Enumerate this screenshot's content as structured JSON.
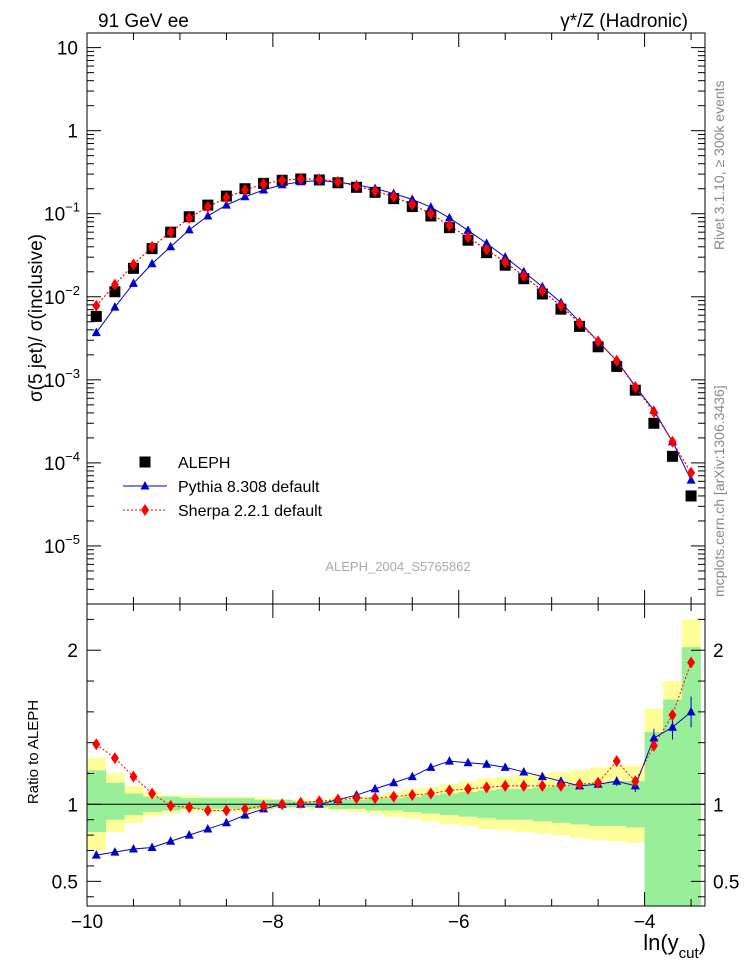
{
  "header": {
    "left_label": "91 GeV ee",
    "right_label": "γ*/Z (Hadronic)"
  },
  "side_labels": {
    "rivet": "Rivet 3.1.10, ≥ 300k events",
    "mcplots": "mcplots.cern.ch [arXiv:1306.3436]"
  },
  "watermark": "ALEPH_2004_S5765862",
  "colors": {
    "data": "#000000",
    "pythia": "#0000cc",
    "sherpa": "#ff0000",
    "band_inner": "#99ee99",
    "band_outer": "#ffff99"
  },
  "chart_data": [
    {
      "type": "scatter",
      "panel": "main",
      "ylabel": "σ(5 jet)/ σ(inclusive)",
      "yscale": "log",
      "ylim": [
        2e-06,
        15
      ],
      "xlim": [
        -10.0,
        -3.35
      ],
      "y_tick_labels": [
        "10",
        "1",
        "10^-1",
        "10^-2",
        "10^-3",
        "10^-4",
        "10^-5"
      ],
      "legend_position": "lower-left",
      "x": [
        -9.9,
        -9.7,
        -9.5,
        -9.3,
        -9.1,
        -8.9,
        -8.7,
        -8.5,
        -8.3,
        -8.1,
        -7.9,
        -7.7,
        -7.5,
        -7.3,
        -7.1,
        -6.9,
        -6.7,
        -6.5,
        -6.3,
        -6.1,
        -5.9,
        -5.7,
        -5.5,
        -5.3,
        -5.1,
        -4.9,
        -4.7,
        -4.5,
        -4.3,
        -4.1,
        -3.9,
        -3.7,
        -3.5
      ],
      "series": [
        {
          "name": "ALEPH",
          "marker": "square",
          "values": [
            0.0058,
            0.0115,
            0.022,
            0.038,
            0.06,
            0.092,
            0.127,
            0.163,
            0.2,
            0.232,
            0.253,
            0.262,
            0.255,
            0.236,
            0.208,
            0.181,
            0.152,
            0.122,
            0.094,
            0.068,
            0.048,
            0.034,
            0.024,
            0.0165,
            0.0108,
            0.0071,
            0.0044,
            0.0025,
            0.00145,
            0.00075,
            0.0003,
            0.00012,
            4e-05
          ]
        },
        {
          "name": "Pythia 8.308 default",
          "marker": "triangle",
          "values": [
            0.0037,
            0.0075,
            0.0145,
            0.025,
            0.04,
            0.064,
            0.094,
            0.127,
            0.16,
            0.193,
            0.223,
            0.243,
            0.25,
            0.24,
            0.223,
            0.201,
            0.175,
            0.149,
            0.12,
            0.089,
            0.063,
            0.044,
            0.03,
            0.02,
            0.0132,
            0.0085,
            0.005,
            0.0029,
            0.0017,
            0.00084,
            0.00043,
            0.00018,
            6.2e-05
          ]
        },
        {
          "name": "Sherpa 2.2.1 default",
          "marker": "diamond",
          "values": [
            0.0078,
            0.014,
            0.0245,
            0.04,
            0.06,
            0.089,
            0.121,
            0.156,
            0.194,
            0.228,
            0.253,
            0.263,
            0.26,
            0.242,
            0.215,
            0.188,
            0.16,
            0.129,
            0.1,
            0.072,
            0.052,
            0.037,
            0.026,
            0.0178,
            0.0118,
            0.0078,
            0.0048,
            0.0029,
            0.0017,
            0.00082,
            0.00041,
            0.00018,
            7.6e-05
          ]
        }
      ]
    },
    {
      "type": "scatter",
      "panel": "ratio",
      "ylabel": "Ratio to ALEPH",
      "xlabel": "ln(y_cut)",
      "ylim": [
        0.34,
        2.3
      ],
      "xlim": [
        -10.0,
        -3.35
      ],
      "x_tick_labels": [
        "−10",
        "−8",
        "−6",
        "−4"
      ],
      "y_tick_labels": [
        "0.5",
        "1",
        "2"
      ],
      "x": [
        -9.9,
        -9.7,
        -9.5,
        -9.3,
        -9.1,
        -8.9,
        -8.7,
        -8.5,
        -8.3,
        -8.1,
        -7.9,
        -7.7,
        -7.5,
        -7.3,
        -7.1,
        -6.9,
        -6.7,
        -6.5,
        -6.3,
        -6.1,
        -5.9,
        -5.7,
        -5.5,
        -5.3,
        -5.1,
        -4.9,
        -4.7,
        -4.5,
        -4.3,
        -4.1,
        -3.9,
        -3.7,
        -3.5
      ],
      "bin_edges": [
        -10.0,
        -9.8,
        -9.6,
        -9.4,
        -9.2,
        -9.0,
        -8.8,
        -8.6,
        -8.4,
        -8.2,
        -8.0,
        -7.8,
        -7.6,
        -7.4,
        -7.2,
        -7.0,
        -6.8,
        -6.6,
        -6.4,
        -6.2,
        -6.0,
        -5.8,
        -5.6,
        -5.4,
        -5.2,
        -5.0,
        -4.8,
        -4.6,
        -4.4,
        -4.2,
        -4.0,
        -3.8,
        -3.6,
        -3.4
      ],
      "series": [
        {
          "name": "Pythia 8.308 default",
          "marker": "triangle",
          "values": [
            0.67,
            0.69,
            0.71,
            0.72,
            0.76,
            0.8,
            0.84,
            0.88,
            0.93,
            0.97,
            1.0,
            1.0,
            1.0,
            1.03,
            1.06,
            1.1,
            1.14,
            1.18,
            1.24,
            1.28,
            1.27,
            1.26,
            1.24,
            1.21,
            1.18,
            1.15,
            1.12,
            1.13,
            1.15,
            1.12,
            1.43,
            1.5,
            1.6
          ],
          "errors": [
            0.0,
            0.0,
            0.0,
            0.0,
            0.0,
            0.0,
            0.0,
            0.0,
            0.0,
            0.0,
            0.0,
            0.0,
            0.0,
            0.0,
            0.0,
            0.0,
            0.0,
            0.0,
            0.0,
            0.0,
            0.0,
            0.0,
            0.0,
            0.0,
            0.0,
            0.0,
            0.0,
            0.0,
            0.03,
            0.04,
            0.06,
            0.08,
            0.1
          ]
        },
        {
          "name": "Sherpa 2.2.1 default",
          "marker": "diamond",
          "values": [
            1.39,
            1.3,
            1.18,
            1.07,
            0.99,
            0.98,
            0.96,
            0.96,
            0.97,
            0.99,
            1.0,
            1.01,
            1.02,
            1.03,
            1.04,
            1.04,
            1.05,
            1.06,
            1.07,
            1.09,
            1.1,
            1.11,
            1.12,
            1.12,
            1.12,
            1.12,
            1.13,
            1.14,
            1.28,
            1.15,
            1.38,
            1.58,
            1.92
          ]
        }
      ],
      "uncertainty_bands": {
        "inner": [
          [
            0.82,
            1.22
          ],
          [
            0.9,
            1.14
          ],
          [
            0.93,
            1.07
          ],
          [
            0.95,
            1.05
          ],
          [
            0.96,
            1.05
          ],
          [
            0.97,
            1.04
          ],
          [
            0.97,
            1.04
          ],
          [
            0.97,
            1.04
          ],
          [
            0.97,
            1.04
          ],
          [
            0.97,
            1.03
          ],
          [
            0.98,
            1.03
          ],
          [
            0.98,
            1.02
          ],
          [
            0.98,
            1.02
          ],
          [
            0.97,
            1.03
          ],
          [
            0.97,
            1.03
          ],
          [
            0.96,
            1.04
          ],
          [
            0.96,
            1.04
          ],
          [
            0.95,
            1.05
          ],
          [
            0.94,
            1.06
          ],
          [
            0.93,
            1.07
          ],
          [
            0.92,
            1.08
          ],
          [
            0.91,
            1.09
          ],
          [
            0.9,
            1.1
          ],
          [
            0.9,
            1.1
          ],
          [
            0.89,
            1.11
          ],
          [
            0.88,
            1.12
          ],
          [
            0.87,
            1.13
          ],
          [
            0.86,
            1.14
          ],
          [
            0.86,
            1.15
          ],
          [
            0.85,
            1.15
          ],
          [
            0.2,
            1.47
          ],
          [
            0.2,
            1.68
          ],
          [
            0.2,
            2.02
          ]
        ],
        "outer": [
          [
            0.7,
            1.3
          ],
          [
            0.82,
            1.2
          ],
          [
            0.88,
            1.12
          ],
          [
            0.92,
            1.08
          ],
          [
            0.94,
            1.06
          ],
          [
            0.95,
            1.06
          ],
          [
            0.95,
            1.05
          ],
          [
            0.95,
            1.05
          ],
          [
            0.95,
            1.05
          ],
          [
            0.96,
            1.04
          ],
          [
            0.97,
            1.03
          ],
          [
            0.97,
            1.03
          ],
          [
            0.97,
            1.03
          ],
          [
            0.96,
            1.04
          ],
          [
            0.95,
            1.05
          ],
          [
            0.94,
            1.06
          ],
          [
            0.92,
            1.08
          ],
          [
            0.91,
            1.1
          ],
          [
            0.89,
            1.11
          ],
          [
            0.87,
            1.13
          ],
          [
            0.86,
            1.15
          ],
          [
            0.84,
            1.17
          ],
          [
            0.83,
            1.18
          ],
          [
            0.82,
            1.19
          ],
          [
            0.81,
            1.2
          ],
          [
            0.8,
            1.21
          ],
          [
            0.78,
            1.22
          ],
          [
            0.77,
            1.24
          ],
          [
            0.76,
            1.25
          ],
          [
            0.75,
            1.25
          ],
          [
            0.2,
            1.62
          ],
          [
            0.2,
            1.8
          ],
          [
            0.2,
            2.2
          ]
        ]
      }
    }
  ]
}
